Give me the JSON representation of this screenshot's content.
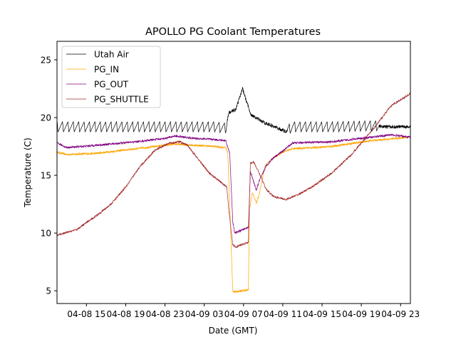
{
  "chart_data": {
    "type": "line",
    "title": "APOLLO PG Coolant Temperatures",
    "xlabel": "Date (GMT)",
    "ylabel": "Temperature (C)",
    "x_unit": "hours since 04-08 00:00 GMT",
    "xlim": [
      12,
      48
    ],
    "ylim": [
      3.9,
      26.6
    ],
    "grid": false,
    "legend_position": "top-left",
    "x_ticks": [
      {
        "value": 15,
        "label": "04-08 15"
      },
      {
        "value": 19,
        "label": "04-08 19"
      },
      {
        "value": 23,
        "label": "04-08 23"
      },
      {
        "value": 27,
        "label": "04-09 03"
      },
      {
        "value": 31,
        "label": "04-09 07"
      },
      {
        "value": 35,
        "label": "04-09 11"
      },
      {
        "value": 39,
        "label": "04-09 15"
      },
      {
        "value": 43,
        "label": "04-09 19"
      },
      {
        "value": 47,
        "label": "04-09 23"
      }
    ],
    "y_ticks": [
      {
        "value": 5,
        "label": "5"
      },
      {
        "value": 10,
        "label": "10"
      },
      {
        "value": 15,
        "label": "15"
      },
      {
        "value": 20,
        "label": "20"
      },
      {
        "value": 25,
        "label": "25"
      }
    ],
    "series": [
      {
        "name": "Utah Air",
        "color": "#000000",
        "oscillation": {
          "amplitude": 0.9,
          "period_hours": 0.55,
          "active_ranges": [
            [
              12,
              29.3
            ],
            [
              35.5,
              44.8
            ]
          ]
        },
        "x": [
          12,
          20,
          24,
          28,
          29.2,
          29.5,
          30.2,
          30.9,
          31.3,
          31.8,
          33,
          35.3,
          36,
          40,
          44.5,
          45.5,
          48
        ],
        "y": [
          19.2,
          19.2,
          19.2,
          19.2,
          19.1,
          20.4,
          20.7,
          22.5,
          21.4,
          20.2,
          19.6,
          18.8,
          19.2,
          19.2,
          19.3,
          19.2,
          19.2
        ]
      },
      {
        "name": "PG_IN",
        "color": "#ffa500",
        "x": [
          12,
          13,
          16,
          20,
          24,
          26,
          28,
          29.2,
          29.4,
          29.7,
          29.9,
          30.1,
          31.5,
          31.6,
          31.9,
          32.3,
          32.6,
          33.2,
          34,
          35,
          36,
          40,
          44,
          48
        ],
        "y": [
          17.0,
          16.8,
          16.9,
          17.3,
          17.7,
          17.6,
          17.5,
          17.4,
          16.9,
          10.0,
          5.0,
          4.9,
          5.1,
          12.0,
          13.5,
          12.6,
          13.3,
          15.8,
          16.5,
          17.0,
          17.3,
          17.5,
          18.0,
          18.3
        ]
      },
      {
        "name": "PG_OUT",
        "color": "#800080",
        "x": [
          12,
          13,
          16,
          20,
          23,
          24,
          26,
          28,
          29.2,
          29.4,
          29.6,
          29.9,
          30.1,
          31.5,
          31.7,
          31.9,
          32.3,
          32.6,
          33.3,
          34,
          35,
          36,
          40,
          44,
          46,
          48
        ],
        "y": [
          17.8,
          17.4,
          17.6,
          17.9,
          18.2,
          18.4,
          18.2,
          18.1,
          18.0,
          17.4,
          16.9,
          11.0,
          10.0,
          10.5,
          15.3,
          14.8,
          13.7,
          14.5,
          15.8,
          16.5,
          17.1,
          17.8,
          17.9,
          18.3,
          18.5,
          18.3
        ]
      },
      {
        "name": "PG_SHUTTLE",
        "color": "#a52a2a",
        "x": [
          12,
          14,
          16,
          17.5,
          19,
          20.5,
          22,
          23.5,
          24.5,
          25.3,
          26.3,
          27.5,
          29.3,
          29.5,
          29.9,
          30.2,
          31.5,
          31.7,
          32.0,
          32.6,
          33.3,
          34,
          35.3,
          36.5,
          38,
          40,
          42,
          43,
          44.5,
          46,
          47.5,
          48
        ],
        "y": [
          9.8,
          10.3,
          11.5,
          12.5,
          14.0,
          15.8,
          17.2,
          17.8,
          17.9,
          17.6,
          16.5,
          15.2,
          14.0,
          12.0,
          9.0,
          8.8,
          9.2,
          16.0,
          16.2,
          15.2,
          13.8,
          13.2,
          12.9,
          13.3,
          14.0,
          15.2,
          16.8,
          17.8,
          19.3,
          21.0,
          21.8,
          22.1
        ]
      }
    ]
  }
}
